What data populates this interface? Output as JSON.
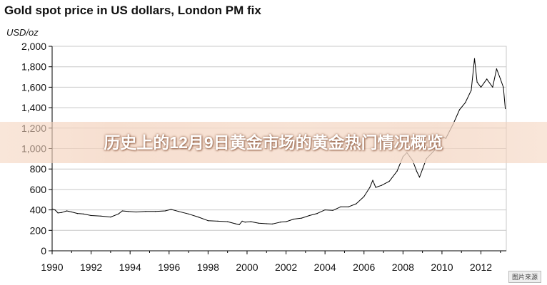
{
  "chart_data": {
    "type": "line",
    "title": "Gold spot price in US dollars, London PM fix",
    "ylabel": "USD/oz",
    "xlabel": "",
    "xlim": [
      1990,
      2013.3
    ],
    "ylim": [
      0,
      2000
    ],
    "yticks": [
      0,
      200,
      400,
      600,
      800,
      1000,
      1200,
      1400,
      1600,
      1800,
      2000
    ],
    "ytick_labels": [
      "0",
      "200",
      "400",
      "600",
      "800",
      "1,000",
      "1,200",
      "1,400",
      "1,600",
      "1,800",
      "2,000"
    ],
    "xticks": [
      1990,
      1992,
      1994,
      1996,
      1998,
      2000,
      2002,
      2004,
      2006,
      2008,
      2010,
      2012
    ],
    "xtick_labels": [
      "1990",
      "1992",
      "1994",
      "1996",
      "1998",
      "2000",
      "2002",
      "2004",
      "2006",
      "2008",
      "2010",
      "2012"
    ],
    "grid": "horizontal",
    "series": [
      {
        "color": "#000000",
        "x": [
          1990.0,
          1990.15,
          1990.3,
          1990.5,
          1990.75,
          1991.0,
          1991.3,
          1991.6,
          1992.0,
          1992.5,
          1993.0,
          1993.4,
          1993.6,
          1993.9,
          1994.3,
          1994.8,
          1995.3,
          1995.8,
          1996.1,
          1996.5,
          1997.0,
          1997.5,
          1998.0,
          1998.5,
          1999.0,
          1999.4,
          1999.6,
          1999.75,
          1999.9,
          2000.2,
          2000.6,
          2001.0,
          2001.3,
          2001.7,
          2002.0,
          2002.4,
          2002.8,
          2003.2,
          2003.6,
          2004.0,
          2004.4,
          2004.8,
          2005.2,
          2005.6,
          2006.0,
          2006.3,
          2006.45,
          2006.6,
          2006.9,
          2007.3,
          2007.7,
          2008.0,
          2008.2,
          2008.5,
          2008.7,
          2008.85,
          2009.2,
          2009.6,
          2009.9,
          2010.2,
          2010.6,
          2010.9,
          2011.2,
          2011.5,
          2011.67,
          2011.8,
          2012.0,
          2012.3,
          2012.6,
          2012.8,
          2013.0,
          2013.15,
          2013.25
        ],
        "y": [
          410,
          400,
          370,
          375,
          390,
          380,
          365,
          360,
          345,
          340,
          330,
          360,
          390,
          385,
          380,
          385,
          385,
          390,
          405,
          385,
          360,
          330,
          295,
          290,
          285,
          265,
          255,
          290,
          280,
          285,
          270,
          265,
          262,
          280,
          285,
          310,
          320,
          345,
          365,
          400,
          395,
          430,
          430,
          460,
          530,
          620,
          690,
          620,
          640,
          680,
          780,
          920,
          960,
          880,
          780,
          720,
          900,
          980,
          1120,
          1100,
          1250,
          1380,
          1450,
          1570,
          1880,
          1650,
          1600,
          1680,
          1600,
          1780,
          1680,
          1600,
          1390
        ]
      }
    ]
  },
  "overlay": {
    "banner_text": "历史上的12月9日黄金市场的黄金热门情况概览",
    "watermark": "图片来源"
  }
}
